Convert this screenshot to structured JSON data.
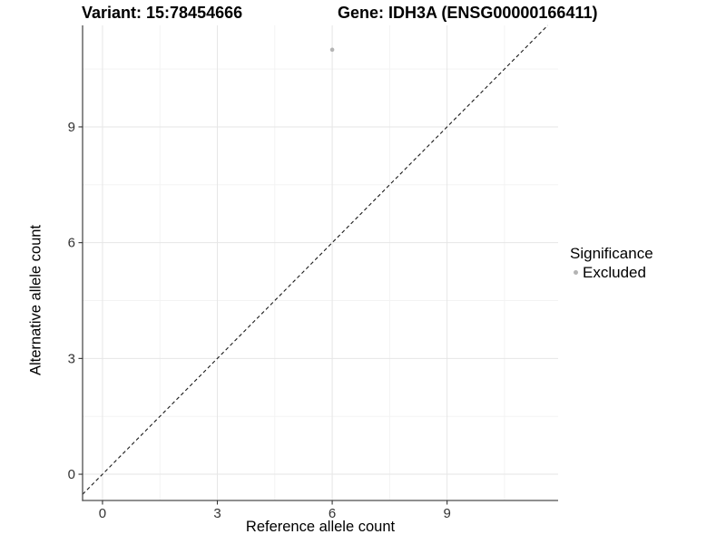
{
  "titles": {
    "left": "Variant: 15:78454666",
    "right": "Gene: IDH3A (ENSG00000166411)"
  },
  "axes": {
    "x_label": "Reference allele count",
    "y_label": "Alternative allele count"
  },
  "legend": {
    "title": "Significance",
    "items": [
      {
        "label": "Excluded",
        "color": "#b4b4b4"
      }
    ]
  },
  "chart_data": {
    "type": "scatter",
    "title": "Variant: 15:78454666 — Gene: IDH3A (ENSG00000166411)",
    "xlabel": "Reference allele count",
    "ylabel": "Alternative allele count",
    "x_ticks": [
      0,
      3,
      6,
      9
    ],
    "y_ticks": [
      0,
      3,
      6,
      9
    ],
    "x_minor_ticks": [
      1.5,
      4.5,
      7.5,
      10.5
    ],
    "y_minor_ticks": [
      1.5,
      4.5,
      7.5,
      10.5
    ],
    "xlim": [
      -0.52,
      11.9
    ],
    "ylim": [
      -0.68,
      11.63
    ],
    "grid": "major+minor",
    "legend_position": "right",
    "series": [
      {
        "name": "Excluded",
        "color": "#b4b4b4",
        "points": [
          {
            "x": 6,
            "y": 11
          }
        ]
      }
    ],
    "reference_line": {
      "kind": "identity y=x",
      "style": "dashed",
      "color": "#1a1a1a"
    }
  },
  "style": {
    "grid_major_color": "#e6e6e6",
    "grid_minor_color": "#f3f3f3",
    "axis_line_color": "#4d4d4d",
    "tick_color": "#333333",
    "tick_label_color": "#333333"
  }
}
